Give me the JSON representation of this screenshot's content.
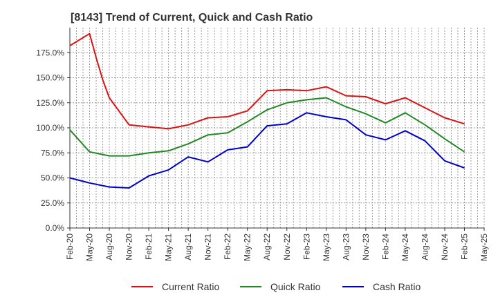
{
  "chart_data": {
    "type": "line",
    "title": "[8143]  Trend of Current, Quick and Cash Ratio",
    "xlabel": "",
    "ylabel": "",
    "ylim": [
      0,
      200
    ],
    "y_ticks": [
      0,
      25,
      50,
      75,
      100,
      125,
      150,
      175
    ],
    "y_tick_labels": [
      "0.0%",
      "25.0%",
      "50.0%",
      "75.0%",
      "100.0%",
      "125.0%",
      "150.0%",
      "175.0%"
    ],
    "x_ticks": [
      "Feb-20",
      "May-20",
      "Aug-20",
      "Nov-20",
      "Feb-21",
      "May-21",
      "Aug-21",
      "Nov-21",
      "Feb-22",
      "May-22",
      "Aug-22",
      "Nov-22",
      "Feb-23",
      "May-23",
      "Aug-23",
      "Nov-23",
      "Feb-24",
      "May-24",
      "Aug-24",
      "Nov-24",
      "Feb-25",
      "May-25"
    ],
    "grid": true,
    "legend_position": "bottom",
    "series": [
      {
        "name": "Current Ratio",
        "color": "#dd1111",
        "points": [
          [
            "Feb-20",
            182
          ],
          [
            "May-20",
            194
          ],
          [
            "Jun-20",
            170
          ],
          [
            "Jul-20",
            148
          ],
          [
            "Aug-20",
            130
          ],
          [
            "Nov-20",
            103
          ],
          [
            "Feb-21",
            101
          ],
          [
            "May-21",
            99
          ],
          [
            "Aug-21",
            103
          ],
          [
            "Nov-21",
            110
          ],
          [
            "Feb-22",
            111
          ],
          [
            "May-22",
            117
          ],
          [
            "Aug-22",
            137
          ],
          [
            "Nov-22",
            138
          ],
          [
            "Feb-23",
            137
          ],
          [
            "May-23",
            141
          ],
          [
            "Aug-23",
            132
          ],
          [
            "Nov-23",
            131
          ],
          [
            "Feb-24",
            124
          ],
          [
            "May-24",
            130
          ],
          [
            "Aug-24",
            120
          ],
          [
            "Nov-24",
            110
          ],
          [
            "Feb-25",
            104
          ]
        ]
      },
      {
        "name": "Quick Ratio",
        "color": "#228822",
        "points": [
          [
            "Feb-20",
            98
          ],
          [
            "May-20",
            76
          ],
          [
            "Aug-20",
            72
          ],
          [
            "Nov-20",
            72
          ],
          [
            "Feb-21",
            75
          ],
          [
            "May-21",
            77
          ],
          [
            "Aug-21",
            84
          ],
          [
            "Nov-21",
            93
          ],
          [
            "Feb-22",
            95
          ],
          [
            "May-22",
            106
          ],
          [
            "Aug-22",
            118
          ],
          [
            "Nov-22",
            125
          ],
          [
            "Feb-23",
            128
          ],
          [
            "May-23",
            130
          ],
          [
            "Aug-23",
            121
          ],
          [
            "Nov-23",
            114
          ],
          [
            "Feb-24",
            105
          ],
          [
            "May-24",
            115
          ],
          [
            "Aug-24",
            103
          ],
          [
            "Nov-24",
            89
          ],
          [
            "Feb-25",
            76
          ]
        ]
      },
      {
        "name": "Cash Ratio",
        "color": "#0000cc",
        "points": [
          [
            "Feb-20",
            50
          ],
          [
            "May-20",
            45
          ],
          [
            "Aug-20",
            41
          ],
          [
            "Nov-20",
            40
          ],
          [
            "Feb-21",
            52
          ],
          [
            "May-21",
            58
          ],
          [
            "Aug-21",
            71
          ],
          [
            "Nov-21",
            66
          ],
          [
            "Feb-22",
            78
          ],
          [
            "May-22",
            81
          ],
          [
            "Aug-22",
            102
          ],
          [
            "Nov-22",
            104
          ],
          [
            "Feb-23",
            115
          ],
          [
            "May-23",
            111
          ],
          [
            "Aug-23",
            108
          ],
          [
            "Nov-23",
            93
          ],
          [
            "Feb-24",
            88
          ],
          [
            "May-24",
            97
          ],
          [
            "Aug-24",
            87
          ],
          [
            "Nov-24",
            67
          ],
          [
            "Feb-25",
            60
          ]
        ]
      }
    ]
  }
}
